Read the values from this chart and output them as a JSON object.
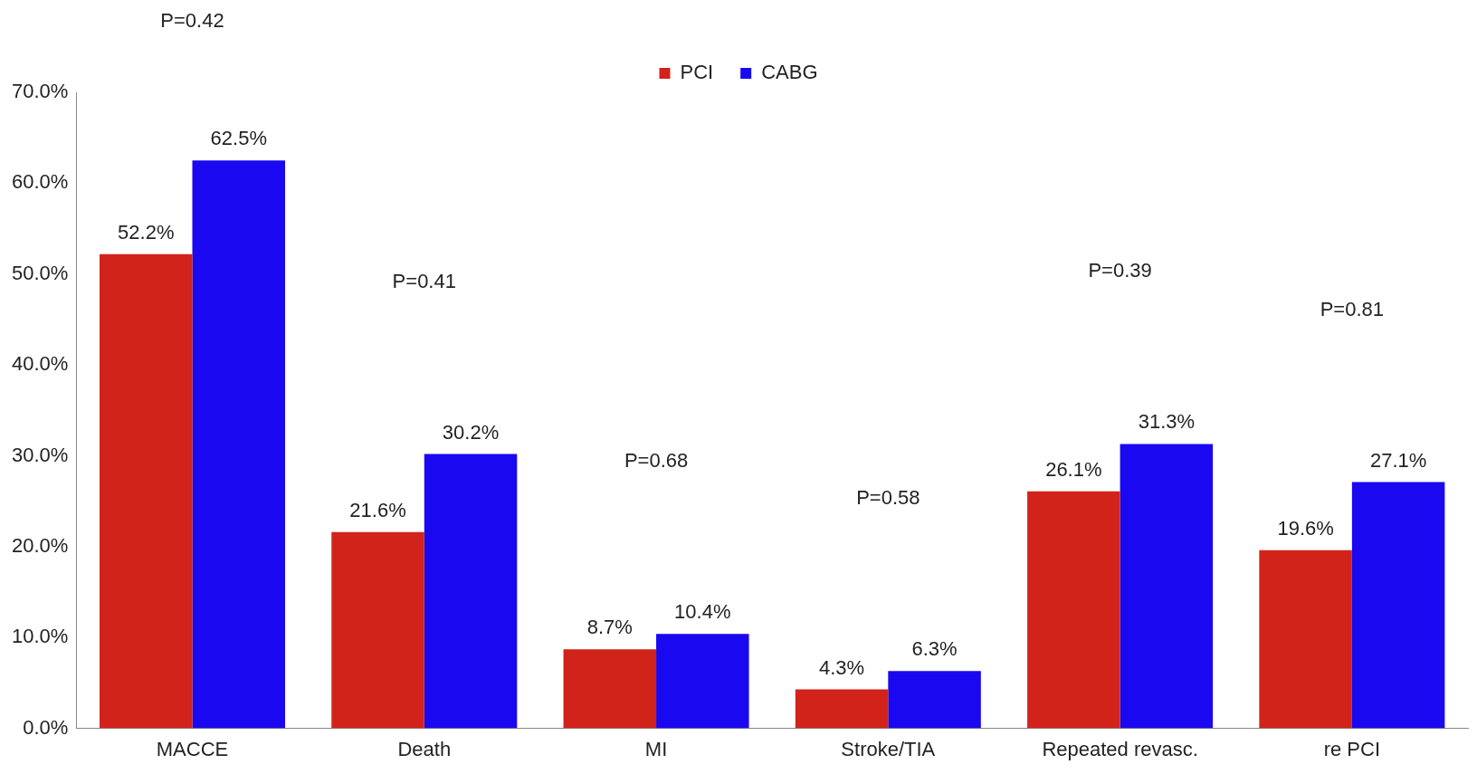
{
  "chart_data": {
    "type": "bar",
    "categories": [
      "MACCE",
      "Death",
      "MI",
      "Stroke/TIA",
      "Repeated revasc.",
      "re PCI"
    ],
    "series": [
      {
        "name": "PCI",
        "color": "#d2231a",
        "values": [
          52.2,
          21.6,
          8.7,
          4.3,
          26.1,
          19.6
        ]
      },
      {
        "name": "CABG",
        "color": "#1a08f0",
        "values": [
          62.5,
          30.2,
          10.4,
          6.3,
          31.3,
          27.1
        ]
      }
    ],
    "value_labels": [
      [
        "52.2%",
        "21.6%",
        "8.7%",
        "4.3%",
        "26.1%",
        "19.6%"
      ],
      [
        "62.5%",
        "30.2%",
        "10.4%",
        "6.3%",
        "31.3%",
        "27.1%"
      ]
    ],
    "ylim": [
      0,
      70
    ],
    "yticks": [
      {
        "value": 0,
        "label": "0.0%"
      },
      {
        "value": 10,
        "label": "10.0%"
      },
      {
        "value": 20,
        "label": "20.0%"
      },
      {
        "value": 30,
        "label": "30.0%"
      },
      {
        "value": 40,
        "label": "40.0%"
      },
      {
        "value": 50,
        "label": "50.0%"
      },
      {
        "value": 60,
        "label": "60.0%"
      },
      {
        "value": 70,
        "label": "70.0%"
      }
    ],
    "grid": false,
    "legend": "top",
    "annotations": [
      "P=0.42",
      "P=0.41",
      "P=0.68",
      "P=0.58",
      "P=0.39",
      "P=0.81"
    ]
  }
}
